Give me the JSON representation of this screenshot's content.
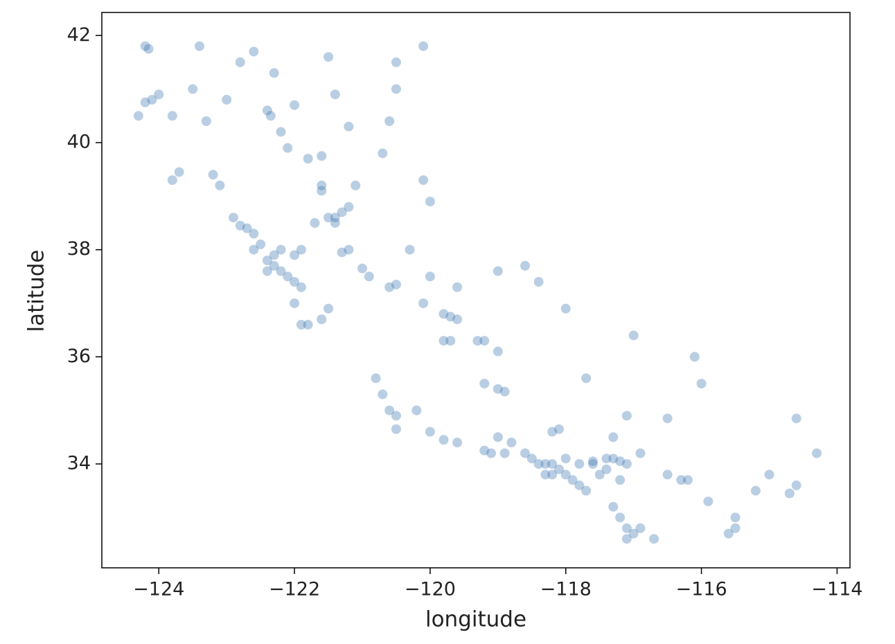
{
  "chart_data": {
    "type": "scatter",
    "x_label": "longitude",
    "y_label": "latitude",
    "color": "#3a74b0",
    "xlim": [
      -124.84,
      -113.81
    ],
    "ylim": [
      32.06,
      42.43
    ],
    "xticks": [
      {
        "value": -124,
        "label": "−124"
      },
      {
        "value": -122,
        "label": "−122"
      },
      {
        "value": -120,
        "label": "−120"
      },
      {
        "value": -118,
        "label": "−118"
      },
      {
        "value": -116,
        "label": "−116"
      },
      {
        "value": -114,
        "label": "−114"
      }
    ],
    "yticks": [
      34,
      36,
      38,
      40,
      42
    ],
    "x": [
      -124.2,
      -124.15,
      -124.1,
      -124.2,
      -124.0,
      -123.8,
      -124.3,
      -123.5,
      -123.3,
      -123.2,
      -123.1,
      -123.7,
      -123.8,
      -122.9,
      -122.8,
      -122.7,
      -122.6,
      -122.5,
      -122.4,
      -122.3,
      -122.2,
      -122.1,
      -122.0,
      -121.9,
      -122.0,
      -121.8,
      -121.9,
      -121.6,
      -121.5,
      -122.4,
      -122.3,
      -122.0,
      -121.9,
      -122.2,
      -122.6,
      -122.4,
      -122.35,
      -122.2,
      -122.1,
      -121.8,
      -121.6,
      -121.6,
      -121.6,
      -121.5,
      -121.4,
      -121.3,
      -121.2,
      -121.1,
      -121.4,
      -121.7,
      -121.2,
      -121.3,
      -121.0,
      -120.9,
      -120.6,
      -120.5,
      -120.1,
      -119.8,
      -119.7,
      -119.6,
      -119.3,
      -119.2,
      -119.0,
      -119.2,
      -119.0,
      -118.9,
      -119.8,
      -119.7,
      -120.0,
      -120.1,
      -120.7,
      -120.3,
      -120.0,
      -119.6,
      -120.6,
      -120.5,
      -120.8,
      -120.7,
      -120.5,
      -120.0,
      -119.8,
      -119.6,
      -119.2,
      -119.1,
      -118.9,
      -118.6,
      -118.5,
      -118.4,
      -118.3,
      -118.2,
      -118.1,
      -118.3,
      -118.2,
      -118.0,
      -117.9,
      -117.8,
      -117.7,
      -118.0,
      -117.8,
      -117.6,
      -117.4,
      -117.3,
      -117.2,
      -117.1,
      -117.4,
      -117.2,
      -117.3,
      -117.2,
      -117.1,
      -117.0,
      -117.1,
      -116.9,
      -116.5,
      -116.3,
      -116.2,
      -118.1,
      -118.2,
      -117.7,
      -117.3,
      -117.1,
      -116.9,
      -115.5,
      -115.5,
      -115.6,
      -114.6,
      -114.6,
      -114.3,
      -114.7,
      -115.2,
      -116.1,
      -116.0,
      -117.0,
      -118.4,
      -118.6,
      -119.0,
      -118.0,
      -116.5,
      -115.0,
      -115.9,
      -117.6,
      -118.8,
      -119.0,
      -116.7,
      -117.5,
      -120.2,
      -122.6,
      -122.8,
      -121.5,
      -120.5,
      -120.1,
      -120.5,
      -120.6,
      -121.2,
      -121.4,
      -122.0,
      -123.0,
      -123.4,
      -122.3
    ],
    "values": [
      41.8,
      41.75,
      40.8,
      40.75,
      40.9,
      40.5,
      40.5,
      41.0,
      40.4,
      39.4,
      39.2,
      39.45,
      39.3,
      38.6,
      38.45,
      38.4,
      38.3,
      38.1,
      37.8,
      37.7,
      37.6,
      37.5,
      37.4,
      37.3,
      37.0,
      36.6,
      36.6,
      36.7,
      36.9,
      37.6,
      37.9,
      37.9,
      38.0,
      38.0,
      38.0,
      40.6,
      40.5,
      40.2,
      39.9,
      39.7,
      39.75,
      39.2,
      39.1,
      38.6,
      38.6,
      38.7,
      38.8,
      39.2,
      38.5,
      38.5,
      38.0,
      37.95,
      37.65,
      37.5,
      37.3,
      37.35,
      37.0,
      36.8,
      36.75,
      36.7,
      36.3,
      36.3,
      36.1,
      35.5,
      35.4,
      35.35,
      36.3,
      36.3,
      38.9,
      39.3,
      39.8,
      38.0,
      37.5,
      37.3,
      35.0,
      34.9,
      35.6,
      35.3,
      34.65,
      34.6,
      34.45,
      34.4,
      34.25,
      34.2,
      34.2,
      34.2,
      34.1,
      34.0,
      34.0,
      34.0,
      33.9,
      33.8,
      33.8,
      33.8,
      33.7,
      33.6,
      33.5,
      34.1,
      34.0,
      34.05,
      34.1,
      34.1,
      34.05,
      34.0,
      33.9,
      33.7,
      33.2,
      33.0,
      32.8,
      32.7,
      32.6,
      32.8,
      33.8,
      33.7,
      33.7,
      34.65,
      34.6,
      35.6,
      34.5,
      34.9,
      34.2,
      32.8,
      33.0,
      32.7,
      33.6,
      34.85,
      34.2,
      33.45,
      33.5,
      36.0,
      35.5,
      36.4,
      37.4,
      37.7,
      37.6,
      36.9,
      34.85,
      33.8,
      33.3,
      34.0,
      34.4,
      34.5,
      32.6,
      33.8,
      35.0,
      41.7,
      41.5,
      41.6,
      41.5,
      41.8,
      41.0,
      40.4,
      40.3,
      40.9,
      40.7,
      40.8,
      41.8,
      41.3
    ]
  }
}
